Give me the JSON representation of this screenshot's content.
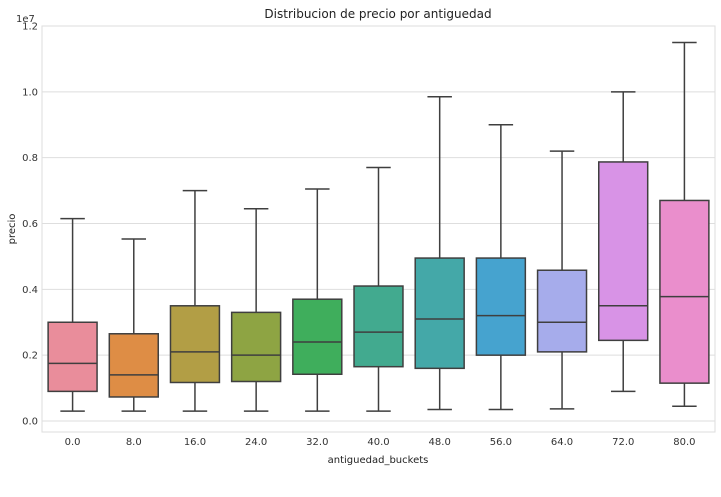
{
  "chart_data": {
    "type": "box",
    "title": "Distribucion de precio por antiguedad",
    "xlabel": "antiguedad_buckets",
    "ylabel": "precio",
    "y_offset_label": "1e7",
    "y_scale": 10000000,
    "ylim": [
      -0.02,
      1.2
    ],
    "yticks": [
      0.0,
      0.2,
      0.4,
      0.6,
      0.8,
      1.0,
      1.2
    ],
    "ytick_labels": [
      "0.0",
      "0.2",
      "0.4",
      "0.6",
      "0.8",
      "1.0",
      "1.2"
    ],
    "grid": "horizontal",
    "categories": [
      "0.0",
      "8.0",
      "16.0",
      "24.0",
      "32.0",
      "40.0",
      "48.0",
      "56.0",
      "64.0",
      "72.0",
      "80.0"
    ],
    "boxes": [
      {
        "category": "0.0",
        "whisker_low": 0.03,
        "q1": 0.09,
        "median": 0.175,
        "q3": 0.3,
        "whisker_high": 0.615,
        "color": "#e98d9b"
      },
      {
        "category": "8.0",
        "whisker_low": 0.03,
        "q1": 0.073,
        "median": 0.14,
        "q3": 0.265,
        "whisker_high": 0.553,
        "color": "#de8d45"
      },
      {
        "category": "16.0",
        "whisker_low": 0.03,
        "q1": 0.117,
        "median": 0.21,
        "q3": 0.35,
        "whisker_high": 0.7,
        "color": "#b29e45"
      },
      {
        "category": "24.0",
        "whisker_low": 0.03,
        "q1": 0.12,
        "median": 0.2,
        "q3": 0.33,
        "whisker_high": 0.645,
        "color": "#8ea443"
      },
      {
        "category": "32.0",
        "whisker_low": 0.03,
        "q1": 0.142,
        "median": 0.24,
        "q3": 0.37,
        "whisker_high": 0.705,
        "color": "#3fae5c"
      },
      {
        "category": "40.0",
        "whisker_low": 0.03,
        "q1": 0.165,
        "median": 0.27,
        "q3": 0.41,
        "whisker_high": 0.77,
        "color": "#42aa8f"
      },
      {
        "category": "48.0",
        "whisker_low": 0.035,
        "q1": 0.16,
        "median": 0.31,
        "q3": 0.495,
        "whisker_high": 0.985,
        "color": "#44a8a8"
      },
      {
        "category": "56.0",
        "whisker_low": 0.035,
        "q1": 0.2,
        "median": 0.32,
        "q3": 0.495,
        "whisker_high": 0.9,
        "color": "#46a3cf"
      },
      {
        "category": "64.0",
        "whisker_low": 0.037,
        "q1": 0.21,
        "median": 0.3,
        "q3": 0.458,
        "whisker_high": 0.82,
        "color": "#a6aceb"
      },
      {
        "category": "72.0",
        "whisker_low": 0.09,
        "q1": 0.245,
        "median": 0.35,
        "q3": 0.787,
        "whisker_high": 1.0,
        "color": "#d893e6"
      },
      {
        "category": "80.0",
        "whisker_low": 0.045,
        "q1": 0.115,
        "median": 0.378,
        "q3": 0.67,
        "whisker_high": 1.15,
        "color": "#ea8ecc"
      }
    ]
  }
}
